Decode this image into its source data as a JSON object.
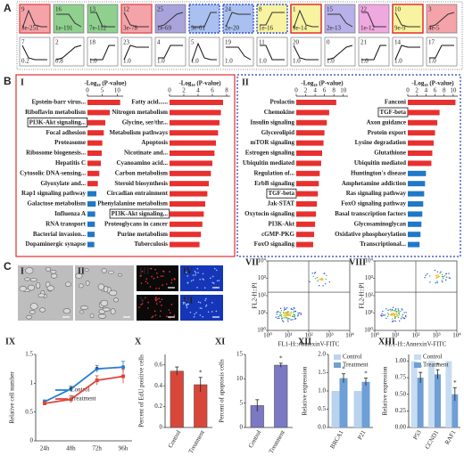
{
  "panel_a": {
    "label": "A",
    "row1": [
      {
        "id": "9",
        "p": "3e-251",
        "fill": "#f4a3a8",
        "border": "#e05050"
      },
      {
        "id": "16",
        "p": "1e-191",
        "fill": "#8fd08f"
      },
      {
        "id": "13",
        "p": "7e-112",
        "fill": "#8fd08f"
      },
      {
        "id": "12",
        "p": "3e-78",
        "fill": "#f4a3a8",
        "border": "#e05050"
      },
      {
        "id": "25",
        "p": "1e-69",
        "fill": "#a9a3dc"
      },
      {
        "p": "9e-61",
        "fill": "#aac0f0",
        "border": "#3050c0",
        "dashed": true
      },
      {
        "id": "24",
        "p": "2e-20",
        "fill": "#aac0f0",
        "border": "#3050c0",
        "dashed": true
      },
      {
        "id": "8",
        "p": "1e-16",
        "fill": "#f7f3a0",
        "border": "#3050c0",
        "dashed": true
      },
      {
        "id": "1",
        "p": "9e-14",
        "fill": "#f7f3a0",
        "border": "#e02020"
      },
      {
        "id": "15",
        "p": "2e-13",
        "fill": "#b8b0e8"
      },
      {
        "id": "22",
        "p": "1e-12",
        "fill": "#f0a8e0"
      },
      {
        "id": "10",
        "p": "9e-9",
        "fill": "#f7f3a0",
        "border": "#e02020"
      },
      {
        "id": "3",
        "p": "4e-5",
        "fill": "#f4a3a8"
      }
    ],
    "row2": [
      {
        "id": "7",
        "p": "0.2"
      },
      {
        "id": "2",
        "p": "0.8"
      },
      {
        "id": "18",
        "p": "1.0"
      },
      {
        "id": "23",
        "p": "1.0"
      },
      {
        "id": "4",
        "p": "1.0"
      },
      {
        "id": "5",
        "p": "1.0"
      },
      {
        "id": "19",
        "p": "1.0"
      },
      {
        "id": "11",
        "p": "1.0"
      },
      {
        "id": "20",
        "p": "1.0"
      },
      {
        "id": "0",
        "p": "1.0"
      },
      {
        "id": "21",
        "p": "1.0"
      },
      {
        "id": "14",
        "p": "1.0"
      },
      {
        "id": "17",
        "p": "1.0"
      }
    ]
  },
  "panel_b": {
    "label": "B",
    "panels": [
      {
        "label": "I",
        "border": "#e03030",
        "dashed": false,
        "columns": [
          {
            "axis_title": "-Log₁₀ (P-value)",
            "xlim": [
              0,
              12
            ],
            "xticks": [
              0,
              5,
              10
            ],
            "items": [
              {
                "label": "Epstein-barr virus...",
                "value": 11,
                "color": "#e8302f"
              },
              {
                "label": "Riboflavin metabolism",
                "value": 7.5,
                "color": "#e8302f"
              },
              {
                "label": "PI3K-Akt signaling...",
                "value": 6,
                "color": "#e8302f",
                "boxed": true
              },
              {
                "label": "Focal adhesion",
                "value": 5.5,
                "color": "#e8302f"
              },
              {
                "label": "Proteasome",
                "value": 5,
                "color": "#e8302f"
              },
              {
                "label": "Ribosome biogenesis...",
                "value": 4.8,
                "color": "#e8302f"
              },
              {
                "label": "Hepatitis C",
                "value": 4.5,
                "color": "#e8302f"
              },
              {
                "label": "Cytosolic DNA-sensing...",
                "value": 4,
                "color": "#e8302f"
              },
              {
                "label": "Glyoxylate and...",
                "value": 3.5,
                "color": "#e8302f"
              },
              {
                "label": "Rap1 signaling pathway",
                "value": 3,
                "color": "#1f78c8"
              },
              {
                "label": "Galactose metabolism",
                "value": 2.8,
                "color": "#1f78c8"
              },
              {
                "label": "Influenza A",
                "value": 2.6,
                "color": "#1f78c8"
              },
              {
                "label": "RNA transport",
                "value": 2.5,
                "color": "#1f78c8"
              },
              {
                "label": "Bacterial invasion...",
                "value": 2.4,
                "color": "#1f78c8"
              },
              {
                "label": "Dopaminergic synapse",
                "value": 2.3,
                "color": "#1f78c8"
              }
            ]
          },
          {
            "axis_title": "-Log₁₀ (P-value)",
            "xlim": [
              0,
              8.5
            ],
            "xticks": [
              0,
              2,
              4,
              6,
              8
            ],
            "items": [
              {
                "label": "Fatty acid......",
                "value": 7.5,
                "color": "#e8302f"
              },
              {
                "label": "Nitrogen metabolism",
                "value": 7.2,
                "color": "#e8302f"
              },
              {
                "label": "Glycine, ser/thr...",
                "value": 7,
                "color": "#e8302f"
              },
              {
                "label": "Metabolism pathways",
                "value": 6.8,
                "color": "#e8302f"
              },
              {
                "label": "Apoptosis",
                "value": 6.5,
                "color": "#e8302f"
              },
              {
                "label": "Nicotinate and...",
                "value": 6.3,
                "color": "#e8302f"
              },
              {
                "label": "Cyanoamino acid...",
                "value": 6,
                "color": "#e8302f"
              },
              {
                "label": "Carbon metabolism",
                "value": 5.8,
                "color": "#e8302f"
              },
              {
                "label": "Steroid biosynthesis",
                "value": 5.5,
                "color": "#e8302f"
              },
              {
                "label": "Circadian entrainment",
                "value": 5.3,
                "color": "#e8302f"
              },
              {
                "label": "Phenylalanine metabolism",
                "value": 5,
                "color": "#e8302f"
              },
              {
                "label": "PI3K-Akt signaling...",
                "value": 4.8,
                "color": "#e8302f",
                "boxed": true
              },
              {
                "label": "Proteoglycans in cancer",
                "value": 4.6,
                "color": "#e8302f"
              },
              {
                "label": "Purine metabolism",
                "value": 4.4,
                "color": "#e8302f"
              },
              {
                "label": "Tuberculosis",
                "value": 4.2,
                "color": "#e8302f"
              }
            ]
          }
        ]
      },
      {
        "label": "II",
        "border": "#2040b0",
        "dashed": true,
        "columns": [
          {
            "axis_title": "-Log₁₀ (P-value)",
            "xlim": [
              0,
              11
            ],
            "xticks": [
              0,
              2,
              4,
              6,
              8,
              10
            ],
            "items": [
              {
                "label": "Prolactin",
                "value": 8.5,
                "color": "#e8302f"
              },
              {
                "label": "Chemokine",
                "value": 7,
                "color": "#e8302f"
              },
              {
                "label": "Insulin signaling",
                "value": 6.5,
                "color": "#e8302f"
              },
              {
                "label": "Glycerolipid",
                "value": 6,
                "color": "#e8302f"
              },
              {
                "label": "mTOR signaling",
                "value": 5.8,
                "color": "#e8302f"
              },
              {
                "label": "Estrogen signaling",
                "value": 5.5,
                "color": "#e8302f"
              },
              {
                "label": "Ubiquitin mediated",
                "value": 5.3,
                "color": "#e8302f"
              },
              {
                "label": "Regulation of...",
                "value": 5,
                "color": "#e8302f"
              },
              {
                "label": "ErbB signaling",
                "value": 4.8,
                "color": "#e8302f"
              },
              {
                "label": "TGF-beta",
                "value": 4.6,
                "color": "#e8302f",
                "boxed": true
              },
              {
                "label": "Jak-STAT",
                "value": 4.4,
                "color": "#e8302f"
              },
              {
                "label": "Oxytocin signaling",
                "value": 4.2,
                "color": "#e8302f"
              },
              {
                "label": "PI3K-Akt",
                "value": 4,
                "color": "#e8302f"
              },
              {
                "label": "cGMP-PKG",
                "value": 3.8,
                "color": "#e8302f"
              },
              {
                "label": "FoxO signaling",
                "value": 3.6,
                "color": "#e8302f"
              }
            ]
          },
          {
            "axis_title": "-Log₁₀ (P-value)",
            "xlim": [
              0,
              11
            ],
            "xticks": [
              0,
              2,
              4,
              6,
              8,
              10
            ],
            "items": [
              {
                "label": "Fanconi",
                "value": 10.5,
                "color": "#e8302f"
              },
              {
                "label": "TGF-beta",
                "value": 7,
                "color": "#e8302f",
                "boxed": true
              },
              {
                "label": "Axon guidance",
                "value": 6.5,
                "color": "#e8302f"
              },
              {
                "label": "Protein export",
                "value": 6,
                "color": "#e8302f"
              },
              {
                "label": "Lysine degradation",
                "value": 5.7,
                "color": "#e8302f"
              },
              {
                "label": "Glutathione",
                "value": 5.4,
                "color": "#e8302f"
              },
              {
                "label": "Ubiquitin mediated",
                "value": 5.2,
                "color": "#e8302f"
              },
              {
                "label": "Huntington's disease",
                "value": 4,
                "color": "#1f78c8"
              },
              {
                "label": "Amphetamine addiction",
                "value": 3.8,
                "color": "#1f78c8"
              },
              {
                "label": "Ras signaling pathway",
                "value": 3.6,
                "color": "#1f78c8"
              },
              {
                "label": "FoxO signaling pathway",
                "value": 3.4,
                "color": "#1f78c8"
              },
              {
                "label": "Basal transcription factors",
                "value": 3.2,
                "color": "#1f78c8"
              },
              {
                "label": "Glycosaminoglycan",
                "value": 3,
                "color": "#1f78c8"
              },
              {
                "label": "Oxidative phosphorylation",
                "value": 2.8,
                "color": "#1f78c8"
              },
              {
                "label": "Transcriptional...",
                "value": 2.6,
                "color": "#1f78c8"
              }
            ]
          }
        ]
      }
    ]
  },
  "panel_c": {
    "label": "C",
    "images": [
      {
        "label": "I",
        "kind": "bright"
      },
      {
        "label": "II",
        "kind": "bright"
      },
      {
        "label": "III",
        "kind": "red"
      },
      {
        "label": "IV",
        "kind": "blue"
      },
      {
        "label": "V",
        "kind": "red"
      },
      {
        "label": "VI",
        "kind": "blue"
      }
    ],
    "flow": [
      {
        "label": "VII"
      },
      {
        "label": "VIII"
      }
    ],
    "flow_xlabel": "FL1-H::AnnexinV-FITC",
    "flow_ylabel": "FL2-H::PI",
    "flow_ticks": [
      {
        "value": 1,
        "label": "10⁰"
      },
      {
        "value": 10,
        "label": "10¹"
      },
      {
        "value": 100,
        "label": "10²"
      },
      {
        "value": 1000,
        "label": "10³"
      },
      {
        "value": 10000,
        "label": "10⁴"
      }
    ],
    "flow_lim": [
      1,
      10000
    ],
    "log_scale": true
  },
  "chart_data": [
    {
      "type": "line",
      "label": "IX",
      "ylabel": "Relative cell number",
      "categories": [
        "24h",
        "48h",
        "72h",
        "96h"
      ],
      "ylim": [
        0,
        1.5
      ],
      "yticks": [
        0,
        0.5,
        1,
        1.5
      ],
      "series": [
        {
          "name": "Control",
          "color": "#2a7fd4",
          "values": [
            0.68,
            0.9,
            1.25,
            1.28
          ],
          "errors": [
            0.03,
            0.05,
            0.06,
            0.1
          ],
          "labels": [
            null,
            null,
            null,
            null
          ]
        },
        {
          "name": "Treatment",
          "color": "#e0443a",
          "values": [
            0.65,
            0.72,
            1.05,
            1.12
          ],
          "errors": [
            0.03,
            0.06,
            0.08,
            0.12
          ],
          "labels": [
            null,
            "*",
            "*",
            null
          ]
        }
      ]
    },
    {
      "type": "bar",
      "label": "X",
      "ylabel": "Percent of EdU positive cells",
      "categories": [
        "Control",
        "Treatment"
      ],
      "ylim": [
        0,
        0.7
      ],
      "yticks": [
        0,
        0.2,
        0.4,
        0.6
      ],
      "series": [
        {
          "color": "#d9473b",
          "values": [
            0.54,
            0.41
          ],
          "errors": [
            0.04,
            0.07
          ],
          "labels": [
            null,
            "*"
          ]
        }
      ]
    },
    {
      "type": "bar",
      "label": "XI",
      "ylabel": "Percent of apoptosis cells",
      "categories": [
        "Control",
        "Treatment"
      ],
      "ylim": [
        0,
        15
      ],
      "yticks": [
        0,
        5,
        10,
        15
      ],
      "series": [
        {
          "color": "#7b78c4",
          "values": [
            4.5,
            12.8
          ],
          "errors": [
            1.2,
            0.4
          ],
          "labels": [
            null,
            "*"
          ]
        }
      ]
    },
    {
      "type": "bar",
      "label": "XII",
      "ylabel": "Relative expression",
      "legend": true,
      "categories": [
        "BRCA1",
        "P21"
      ],
      "ylim": [
        0,
        2
      ],
      "yticks": [
        {
          "value": 0,
          "label": "0.0"
        },
        {
          "value": 0.5,
          "label": "0.5"
        },
        {
          "value": 1,
          "label": "1.0"
        },
        {
          "value": 1.5,
          "label": "1.5"
        },
        {
          "value": 2,
          "label": "2.0"
        }
      ],
      "series": [
        {
          "name": "Control",
          "color": "#b9d3ee",
          "values": [
            1,
            1
          ],
          "errors": [
            0,
            0
          ],
          "labels": [
            null,
            null
          ]
        },
        {
          "name": "Treatment",
          "color": "#6e9fd5",
          "values": [
            1.35,
            1.25
          ],
          "errors": [
            0.12,
            0.1
          ],
          "labels": [
            "*",
            "*"
          ]
        }
      ]
    },
    {
      "type": "bar",
      "label": "XIII",
      "ylabel": "Relative expression",
      "legend": true,
      "categories": [
        "P53",
        "CCND1",
        "RAF1"
      ],
      "ylim": [
        0,
        1.1
      ],
      "yticks": [
        {
          "value": 0,
          "label": "0.00"
        },
        {
          "value": 0.25,
          "label": "0.25"
        },
        {
          "value": 0.5,
          "label": "0.50"
        },
        {
          "value": 0.75,
          "label": "0.75"
        },
        {
          "value": 1,
          "label": "1.00"
        }
      ],
      "series": [
        {
          "name": "Control",
          "color": "#c7dcf0",
          "values": [
            1,
            1,
            1
          ],
          "errors": [
            0,
            0,
            0
          ],
          "labels": [
            null,
            null,
            null
          ]
        },
        {
          "name": "Treatment",
          "color": "#6e9fd5",
          "values": [
            0.75,
            0.8,
            0.5
          ],
          "errors": [
            0.08,
            0.07,
            0.1
          ],
          "labels": [
            "*",
            "*",
            "*"
          ]
        }
      ]
    }
  ]
}
